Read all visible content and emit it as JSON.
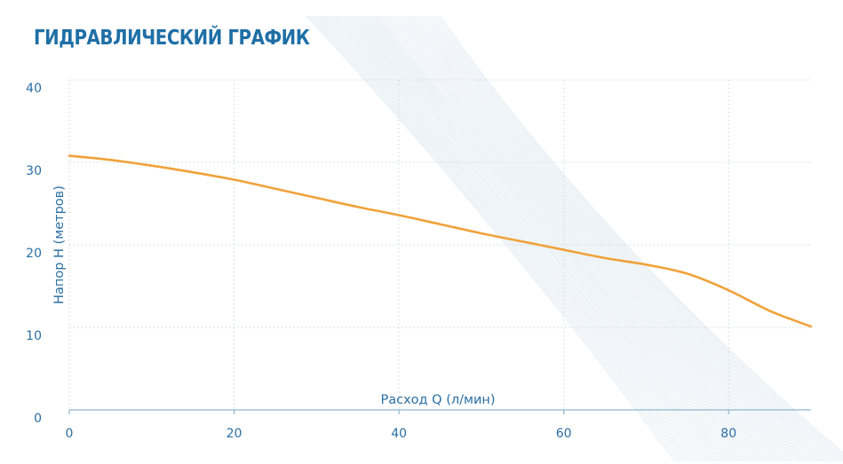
{
  "chart_data": {
    "type": "line",
    "title": "ГИДРАВЛИЧЕСКИЙ ГРАФИК",
    "xlabel": "Расход Q (л/мин)",
    "ylabel": "Напор H (метров)",
    "xlim": [
      0,
      90
    ],
    "ylim": [
      0,
      40
    ],
    "xticks": [
      "0",
      "20",
      "40",
      "60",
      "80"
    ],
    "yticks": [
      "0",
      "10",
      "20",
      "30",
      "40"
    ],
    "grid": true,
    "series": [
      {
        "color": "#f0a23a",
        "x": [
          0,
          5,
          10,
          15,
          20,
          25,
          30,
          35,
          40,
          45,
          50,
          55,
          60,
          65,
          70,
          75,
          80,
          85,
          90
        ],
        "y": [
          30.8,
          30.3,
          29.6,
          28.8,
          27.9,
          26.8,
          25.7,
          24.6,
          23.6,
          22.5,
          21.4,
          20.4,
          19.4,
          18.4,
          17.6,
          16.5,
          14.5,
          12.0,
          10.1
        ]
      }
    ]
  }
}
